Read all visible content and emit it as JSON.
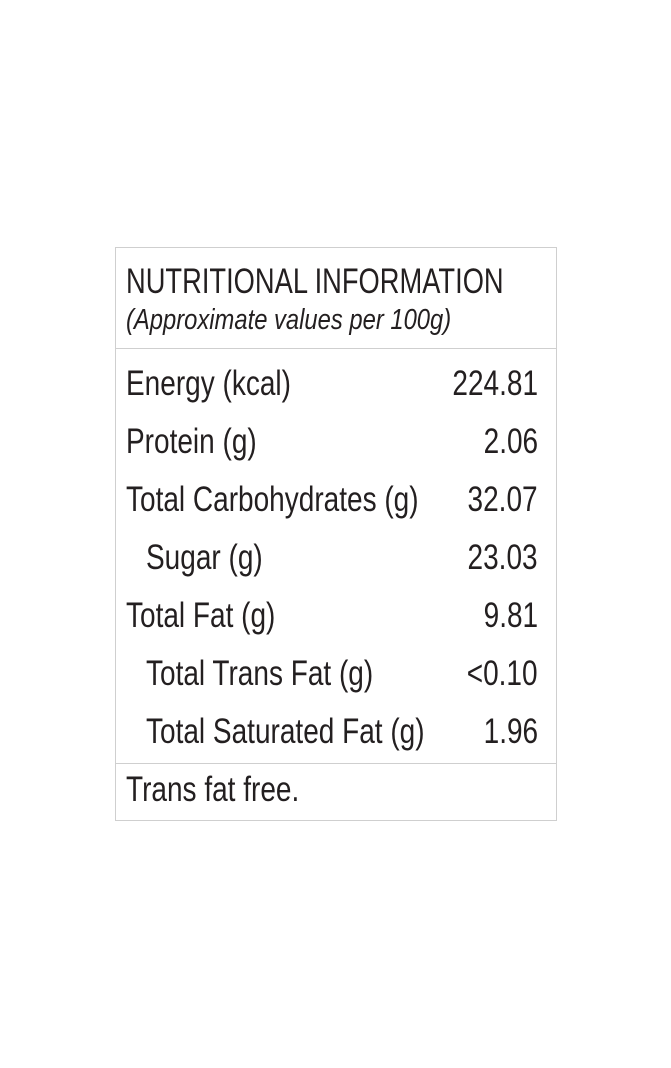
{
  "header": {
    "title": "NUTRITIONAL INFORMATION",
    "subtitle": "(Approximate values per 100g)"
  },
  "rows": [
    {
      "label": "Energy (kcal)",
      "value": "224.81"
    },
    {
      "label": "Protein (g)",
      "value": "2.06"
    },
    {
      "label": "Total Carbohydrates (g)",
      "value": "32.07",
      "sub_rows": [
        {
          "label": "Sugar (g)",
          "value": "23.03"
        }
      ]
    },
    {
      "label": "Total Fat (g)",
      "value": "9.81",
      "sub_rows": [
        {
          "label": "Total Trans Fat (g)",
          "value": "<0.10"
        },
        {
          "label": "Total Saturated Fat (g)",
          "value": "1.96"
        }
      ]
    }
  ],
  "footer": "Trans fat free."
}
